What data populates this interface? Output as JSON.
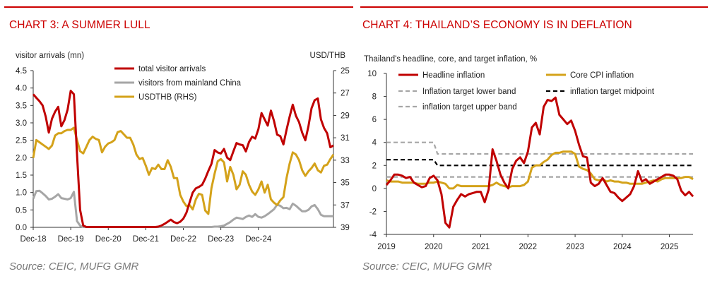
{
  "left": {
    "title": "CHART 3: A SUMMER LULL",
    "source": "Source: CEIC, MUFG GMR",
    "chart_data": {
      "type": "line",
      "ylabel": "visitor arrivals (mn)",
      "y2label": "USD/THB",
      "ylim": [
        0,
        4.5
      ],
      "yticks": [
        "4.5",
        "4.0",
        "3.5",
        "3.0",
        "2.5",
        "2.0",
        "1.5",
        "1.0",
        "0.5",
        "0.0"
      ],
      "y2lim": [
        25,
        39
      ],
      "y2ticks": [
        "25",
        "27",
        "29",
        "31",
        "33",
        "35",
        "37",
        "39"
      ],
      "y2_inverted": true,
      "xticks": [
        "Dec-18",
        "Dec-19",
        "Dec-20",
        "Dec-21",
        "Dec-22",
        "Dec-23",
        "Dec-24"
      ],
      "x_start": "2018-12",
      "grid": false,
      "legend": "top-center",
      "series": [
        {
          "name": "total visitor arrivals",
          "axis": "left",
          "color": "#c00000",
          "values": [
            3.82,
            3.72,
            3.62,
            3.5,
            3.18,
            2.72,
            3.12,
            3.32,
            3.46,
            2.9,
            3.08,
            3.38,
            3.92,
            3.82,
            2.1,
            0.5,
            0.05,
            0.01,
            0.01,
            0.01,
            0.01,
            0.01,
            0.01,
            0.01,
            0.01,
            0.01,
            0.01,
            0.01,
            0.01,
            0.01,
            0.01,
            0.01,
            0.01,
            0.01,
            0.01,
            0.01,
            0.01,
            0.01,
            0.01,
            0.01,
            0.02,
            0.05,
            0.1,
            0.16,
            0.22,
            0.15,
            0.12,
            0.16,
            0.25,
            0.42,
            0.72,
            1.0,
            1.12,
            1.16,
            1.22,
            1.4,
            1.62,
            1.82,
            2.22,
            2.15,
            2.12,
            2.25,
            2.0,
            1.93,
            2.18,
            2.42,
            2.38,
            2.36,
            2.18,
            2.45,
            2.6,
            2.55,
            2.82,
            3.28,
            3.1,
            2.92,
            3.35,
            3.05,
            2.66,
            2.62,
            2.38,
            2.8,
            3.18,
            3.52,
            3.2,
            3.02,
            2.72,
            2.5,
            2.9,
            3.42,
            3.65,
            3.7,
            3.1,
            2.85,
            2.7,
            2.3,
            2.35
          ]
        },
        {
          "name": "visitors from mainland China",
          "axis": "left",
          "color": "#a6a6a6",
          "values": [
            0.82,
            1.04,
            1.05,
            0.98,
            0.9,
            0.8,
            0.82,
            0.88,
            0.95,
            0.84,
            0.82,
            0.8,
            0.84,
            1.02,
            0.18,
            0.05,
            0.01,
            0.01,
            0.01,
            0.01,
            0.01,
            0.01,
            0.01,
            0.01,
            0.01,
            0.01,
            0.01,
            0.01,
            0.01,
            0.01,
            0.01,
            0.01,
            0.01,
            0.01,
            0.01,
            0.01,
            0.01,
            0.01,
            0.01,
            0.01,
            0.01,
            0.01,
            0.01,
            0.01,
            0.01,
            0.01,
            0.01,
            0.01,
            0.01,
            0.01,
            0.01,
            0.01,
            0.01,
            0.01,
            0.01,
            0.01,
            0.01,
            0.01,
            0.02,
            0.02,
            0.03,
            0.05,
            0.1,
            0.15,
            0.22,
            0.28,
            0.26,
            0.24,
            0.3,
            0.34,
            0.3,
            0.38,
            0.3,
            0.28,
            0.32,
            0.38,
            0.45,
            0.52,
            0.65,
            0.62,
            0.55,
            0.56,
            0.52,
            0.68,
            0.62,
            0.54,
            0.46,
            0.46,
            0.5,
            0.6,
            0.64,
            0.52,
            0.36,
            0.32,
            0.32,
            0.32,
            0.32
          ]
        },
        {
          "name": "USDTHB (RHS)",
          "axis": "right",
          "color": "#d4a21a",
          "values": [
            32.8,
            31.2,
            31.4,
            31.6,
            31.8,
            32.0,
            31.7,
            30.8,
            30.6,
            30.6,
            30.4,
            30.3,
            30.3,
            30.1,
            31.2,
            32.2,
            32.4,
            31.8,
            31.2,
            30.9,
            31.1,
            31.2,
            32.3,
            31.8,
            31.5,
            31.4,
            31.2,
            30.5,
            30.4,
            30.7,
            31.0,
            31.0,
            31.6,
            32.5,
            32.9,
            32.8,
            33.5,
            34.3,
            33.7,
            33.8,
            33.4,
            33.8,
            33.8,
            33.0,
            33.6,
            34.6,
            34.6,
            36.1,
            36.7,
            37.1,
            37.0,
            37.4,
            36.5,
            36.0,
            36.1,
            37.5,
            37.8,
            35.5,
            34.2,
            33.1,
            32.9,
            33.2,
            34.9,
            33.6,
            34.3,
            35.6,
            35.2,
            34.0,
            34.3,
            35.2,
            35.8,
            36.1,
            35.6,
            34.9,
            35.9,
            35.2,
            36.5,
            36.8,
            37.0,
            36.6,
            36.3,
            34.6,
            33.3,
            32.3,
            32.5,
            33.0,
            33.9,
            34.4,
            34.0,
            33.7,
            33.3,
            33.9,
            34.1,
            33.5,
            33.4,
            32.9,
            32.5
          ]
        }
      ]
    }
  },
  "right": {
    "title": "CHART 4: THAILAND’S ECONOMY IS IN DEFLATION",
    "source": "Source: CEIC, MUFG GMR",
    "chart_data": {
      "type": "line",
      "subtitle": "Thailand's headline, core, and target inflation, %",
      "ylim": [
        -4,
        10
      ],
      "yticks": [
        "10",
        "8",
        "6",
        "4",
        "2",
        "0",
        "-2",
        "-4"
      ],
      "xticks": [
        "2019",
        "2020",
        "2021",
        "2022",
        "2023",
        "2024",
        "2025"
      ],
      "x_start": "2019-01",
      "grid": false,
      "legend": "top",
      "series": [
        {
          "name": "Headline inflation",
          "color": "#c00000",
          "style": "solid",
          "values": [
            0.3,
            0.7,
            1.2,
            1.2,
            1.1,
            0.9,
            1.0,
            0.5,
            0.3,
            0.1,
            0.2,
            0.9,
            1.1,
            0.7,
            -0.5,
            -3.0,
            -3.4,
            -1.6,
            -1.0,
            -0.5,
            -0.7,
            -0.5,
            -0.4,
            -0.3,
            -0.3,
            -1.2,
            -0.1,
            3.4,
            2.4,
            1.2,
            0.5,
            0.0,
            1.7,
            2.4,
            2.7,
            2.2,
            3.2,
            5.3,
            5.7,
            4.7,
            7.1,
            7.7,
            7.6,
            7.9,
            6.4,
            6.0,
            5.6,
            5.9,
            5.0,
            3.8,
            2.8,
            2.7,
            0.5,
            0.2,
            0.4,
            0.9,
            0.3,
            -0.3,
            -0.4,
            -0.8,
            -1.1,
            -0.8,
            -0.5,
            0.2,
            1.5,
            0.6,
            0.8,
            0.4,
            0.6,
            0.8,
            1.0,
            1.2,
            1.2,
            1.1,
            0.8,
            -0.2,
            -0.6,
            -0.3,
            -0.7
          ]
        },
        {
          "name": "Core CPI inflation",
          "color": "#d4a21a",
          "style": "solid",
          "values": [
            0.7,
            0.6,
            0.6,
            0.6,
            0.5,
            0.5,
            0.5,
            0.5,
            0.4,
            0.4,
            0.4,
            0.5,
            0.5,
            0.6,
            0.5,
            0.4,
            0.0,
            0.0,
            0.3,
            0.2,
            0.2,
            0.2,
            0.2,
            0.2,
            0.2,
            0.2,
            0.2,
            0.3,
            0.5,
            0.3,
            0.2,
            0.1,
            0.2,
            0.2,
            0.2,
            0.3,
            0.6,
            1.8,
            2.0,
            2.0,
            2.3,
            2.5,
            2.9,
            3.1,
            3.1,
            3.2,
            3.2,
            3.2,
            3.0,
            1.9,
            1.7,
            1.6,
            1.3,
            0.8,
            0.7,
            0.8,
            0.6,
            0.7,
            0.6,
            0.6,
            0.5,
            0.5,
            0.4,
            0.4,
            0.4,
            0.4,
            0.5,
            0.6,
            0.7,
            0.6,
            0.8,
            0.9,
            0.9,
            0.9,
            0.9,
            0.9,
            1.0,
            1.0,
            0.8
          ]
        },
        {
          "name": "Inflation target lower band",
          "color": "#a6a6a6",
          "style": "dashed",
          "values": [
            1.0,
            1.0,
            1.0,
            1.0,
            1.0,
            1.0,
            1.0,
            1.0,
            1.0,
            1.0,
            1.0,
            1.0,
            1.0,
            1.0,
            1.0,
            1.0,
            1.0,
            1.0,
            1.0,
            1.0,
            1.0,
            1.0,
            1.0,
            1.0,
            1.0,
            1.0,
            1.0,
            1.0,
            1.0,
            1.0,
            1.0,
            1.0,
            1.0,
            1.0,
            1.0,
            1.0,
            1.0,
            1.0,
            1.0,
            1.0,
            1.0,
            1.0,
            1.0,
            1.0,
            1.0,
            1.0,
            1.0,
            1.0,
            1.0,
            1.0,
            1.0,
            1.0,
            1.0,
            1.0,
            1.0,
            1.0,
            1.0,
            1.0,
            1.0,
            1.0,
            1.0,
            1.0,
            1.0,
            1.0,
            1.0,
            1.0,
            1.0,
            1.0,
            1.0,
            1.0,
            1.0,
            1.0,
            1.0,
            1.0,
            1.0,
            1.0,
            1.0,
            1.0,
            1.0
          ]
        },
        {
          "name": "inflation target midpoint",
          "color": "#000000",
          "style": "dashed",
          "values": [
            2.5,
            2.5,
            2.5,
            2.5,
            2.5,
            2.5,
            2.5,
            2.5,
            2.5,
            2.5,
            2.5,
            2.5,
            2.5,
            2.0,
            2.0,
            2.0,
            2.0,
            2.0,
            2.0,
            2.0,
            2.0,
            2.0,
            2.0,
            2.0,
            2.0,
            2.0,
            2.0,
            2.0,
            2.0,
            2.0,
            2.0,
            2.0,
            2.0,
            2.0,
            2.0,
            2.0,
            2.0,
            2.0,
            2.0,
            2.0,
            2.0,
            2.0,
            2.0,
            2.0,
            2.0,
            2.0,
            2.0,
            2.0,
            2.0,
            2.0,
            2.0,
            2.0,
            2.0,
            2.0,
            2.0,
            2.0,
            2.0,
            2.0,
            2.0,
            2.0,
            2.0,
            2.0,
            2.0,
            2.0,
            2.0,
            2.0,
            2.0,
            2.0,
            2.0,
            2.0,
            2.0,
            2.0,
            2.0,
            2.0,
            2.0,
            2.0,
            2.0,
            2.0,
            2.0
          ]
        },
        {
          "name": "inflation target upper band",
          "color": "#a6a6a6",
          "style": "dashed",
          "values": [
            4.0,
            4.0,
            4.0,
            4.0,
            4.0,
            4.0,
            4.0,
            4.0,
            4.0,
            4.0,
            4.0,
            4.0,
            4.0,
            3.0,
            3.0,
            3.0,
            3.0,
            3.0,
            3.0,
            3.0,
            3.0,
            3.0,
            3.0,
            3.0,
            3.0,
            3.0,
            3.0,
            3.0,
            3.0,
            3.0,
            3.0,
            3.0,
            3.0,
            3.0,
            3.0,
            3.0,
            3.0,
            3.0,
            3.0,
            3.0,
            3.0,
            3.0,
            3.0,
            3.0,
            3.0,
            3.0,
            3.0,
            3.0,
            3.0,
            3.0,
            3.0,
            3.0,
            3.0,
            3.0,
            3.0,
            3.0,
            3.0,
            3.0,
            3.0,
            3.0,
            3.0,
            3.0,
            3.0,
            3.0,
            3.0,
            3.0,
            3.0,
            3.0,
            3.0,
            3.0,
            3.0,
            3.0,
            3.0,
            3.0,
            3.0,
            3.0,
            3.0,
            3.0,
            3.0
          ]
        }
      ]
    }
  }
}
